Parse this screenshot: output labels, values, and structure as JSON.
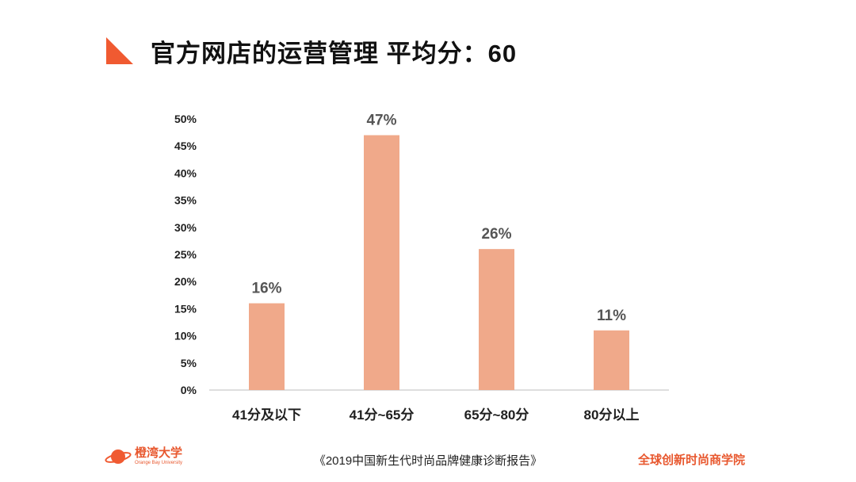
{
  "header": {
    "title": "官方网店的运营管理  平均分：60",
    "accent_color": "#f05a31"
  },
  "chart_data": {
    "type": "bar",
    "categories": [
      "41分及以下",
      "41分~65分",
      "65分~80分",
      "80分以上"
    ],
    "values": [
      16,
      47,
      26,
      11
    ],
    "data_labels": [
      "16%",
      "47%",
      "26%",
      "11%"
    ],
    "y_ticks": [
      "0%",
      "5%",
      "10%",
      "15%",
      "20%",
      "25%",
      "30%",
      "35%",
      "40%",
      "45%",
      "50%"
    ],
    "ylim": [
      0,
      50
    ],
    "unit": "%",
    "bar_color": "#f0a98a",
    "grid": false,
    "legend": "none"
  },
  "footer": {
    "logo_name": "橙湾大学",
    "logo_subtitle": "Orange Bay University",
    "logo_icon": "planet-icon",
    "center_text": "《2019中国新生代时尚品牌健康诊断报告》",
    "right_text": "全球创新时尚商学院",
    "brand_color": "#e8582f"
  }
}
